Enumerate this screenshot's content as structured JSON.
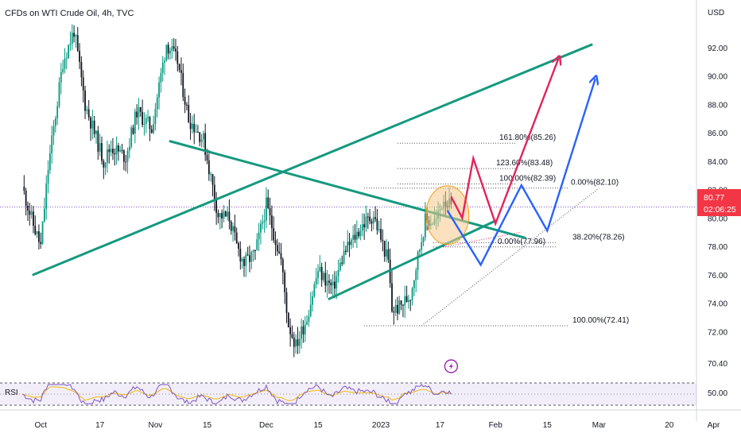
{
  "header": {
    "title": "CFDs on WTI Crude Oil, 4h, TVC"
  },
  "axis": {
    "currency": "USD"
  },
  "last_price": {
    "value": 80.77,
    "label": "80.77",
    "countdown": "02:06:25"
  },
  "rsi": {
    "label": "RSI",
    "levels": [
      70,
      50,
      30
    ]
  },
  "colors": {
    "up": "#089981",
    "down": "#131722",
    "trendline": "#14997e",
    "bullish_path_red": "#e0245e",
    "bullish_path_blue": "#2962ff",
    "highlight": "#f7c98b",
    "rsi_band": "#7e57c2",
    "rsi_line": "#f0b90b",
    "price_tag": "#f23645"
  },
  "icons": {
    "event_marker": "lightning-bolt-icon"
  },
  "chart_data": {
    "type": "candlestick",
    "title": "CFDs on WTI Crude Oil, 4h, TVC",
    "ylabel": "USD",
    "ylim": [
      69.5,
      94.0
    ],
    "y_ticks": [
      "92.00",
      "90.00",
      "88.00",
      "86.00",
      "84.00",
      "82.00",
      "80.00",
      "78.00",
      "76.00",
      "74.00",
      "72.00",
      "70.40"
    ],
    "x_ticks": [
      "Oct",
      "17",
      "Nov",
      "15",
      "Dec",
      "15",
      "2023",
      "17",
      "Feb",
      "15",
      "Mar",
      "20",
      "Apr"
    ],
    "price_anchors": [
      {
        "date": "Sep 26",
        "price": 82.2
      },
      {
        "date": "Sep 29",
        "price": 79.5
      },
      {
        "date": "Oct 1",
        "price": 78.0
      },
      {
        "date": "Oct 3",
        "price": 83.5
      },
      {
        "date": "Oct 7",
        "price": 91.0
      },
      {
        "date": "Oct 10",
        "price": 93.2
      },
      {
        "date": "Oct 13",
        "price": 88.0
      },
      {
        "date": "Oct 18",
        "price": 84.0
      },
      {
        "date": "Oct 20",
        "price": 85.0
      },
      {
        "date": "Oct 24",
        "price": 84.3
      },
      {
        "date": "Oct 27",
        "price": 87.5
      },
      {
        "date": "Oct 31",
        "price": 86.3
      },
      {
        "date": "Nov 4",
        "price": 92.3
      },
      {
        "date": "Nov 7",
        "price": 91.0
      },
      {
        "date": "Nov 10",
        "price": 87.0
      },
      {
        "date": "Nov 14",
        "price": 85.5
      },
      {
        "date": "Nov 18",
        "price": 80.2
      },
      {
        "date": "Nov 21",
        "price": 80.0
      },
      {
        "date": "Nov 23",
        "price": 78.0
      },
      {
        "date": "Nov 25",
        "price": 76.8
      },
      {
        "date": "Nov 28",
        "price": 77.5
      },
      {
        "date": "Dec 1",
        "price": 80.9
      },
      {
        "date": "Dec 5",
        "price": 77.0
      },
      {
        "date": "Dec 7",
        "price": 72.5
      },
      {
        "date": "Dec 9",
        "price": 71.0
      },
      {
        "date": "Dec 12",
        "price": 73.0
      },
      {
        "date": "Dec 15",
        "price": 76.3
      },
      {
        "date": "Dec 19",
        "price": 75.0
      },
      {
        "date": "Dec 22",
        "price": 77.5
      },
      {
        "date": "Dec 27",
        "price": 79.5
      },
      {
        "date": "Dec 30",
        "price": 80.2
      },
      {
        "date": "Jan 3",
        "price": 76.9
      },
      {
        "date": "Jan 4",
        "price": 73.5
      },
      {
        "date": "Jan 6",
        "price": 73.7
      },
      {
        "date": "Jan 9",
        "price": 74.6
      },
      {
        "date": "Jan 11",
        "price": 77.3
      },
      {
        "date": "Jan 13",
        "price": 79.8
      },
      {
        "date": "Jan 16",
        "price": 79.8
      },
      {
        "date": "Jan 18",
        "price": 81.4
      },
      {
        "date": "Jan 20",
        "price": 80.7
      }
    ],
    "trendlines": [
      {
        "name": "upper-rising",
        "from": {
          "date": "Sep 29",
          "price": 76.0
        },
        "to": {
          "date": "Feb 27",
          "price": 92.2
        }
      },
      {
        "name": "descending",
        "from": {
          "date": "Nov 5",
          "price": 85.4
        },
        "to": {
          "date": "Feb 9",
          "price": 78.6
        }
      },
      {
        "name": "lower-rising",
        "from": {
          "date": "Dec 18",
          "price": 74.3
        },
        "to": {
          "date": "Feb 1",
          "price": 79.8
        }
      }
    ],
    "fibonacci_levels": [
      {
        "label": "161.80%(85.26)",
        "price": 85.26
      },
      {
        "label": "123.60%(83.48)",
        "price": 83.48
      },
      {
        "label": "100.00%(82.39)",
        "price": 82.39
      },
      {
        "label": "0.00%(82.10)",
        "price": 82.1
      },
      {
        "label": "0.00%(77.96)",
        "price": 77.96
      },
      {
        "label": "38.20%(78.26)",
        "price": 78.26
      },
      {
        "label": "100.00%(72.41)",
        "price": 72.41
      }
    ],
    "projection_paths": [
      {
        "name": "red",
        "points": [
          {
            "date": "Jan 20",
            "price": 81.5
          },
          {
            "date": "Jan 23",
            "price": 80.0
          },
          {
            "date": "Jan 26",
            "price": 84.2
          },
          {
            "date": "Feb 1",
            "price": 79.6
          },
          {
            "date": "Feb 18",
            "price": 91.2
          }
        ]
      },
      {
        "name": "blue",
        "points": [
          {
            "date": "Jan 19",
            "price": 80.5
          },
          {
            "date": "Jan 28",
            "price": 76.7
          },
          {
            "date": "Feb 8",
            "price": 82.3
          },
          {
            "date": "Feb 15",
            "price": 79.1
          },
          {
            "date": "Feb 28",
            "price": 89.8
          }
        ]
      }
    ],
    "annotations": [
      {
        "type": "ellipse",
        "center": {
          "date": "Jan 19",
          "price": 80.2
        }
      },
      {
        "type": "event",
        "icon": "lightning-bolt-icon",
        "date": "Jan 20"
      }
    ],
    "grid": false,
    "legend": "none"
  }
}
